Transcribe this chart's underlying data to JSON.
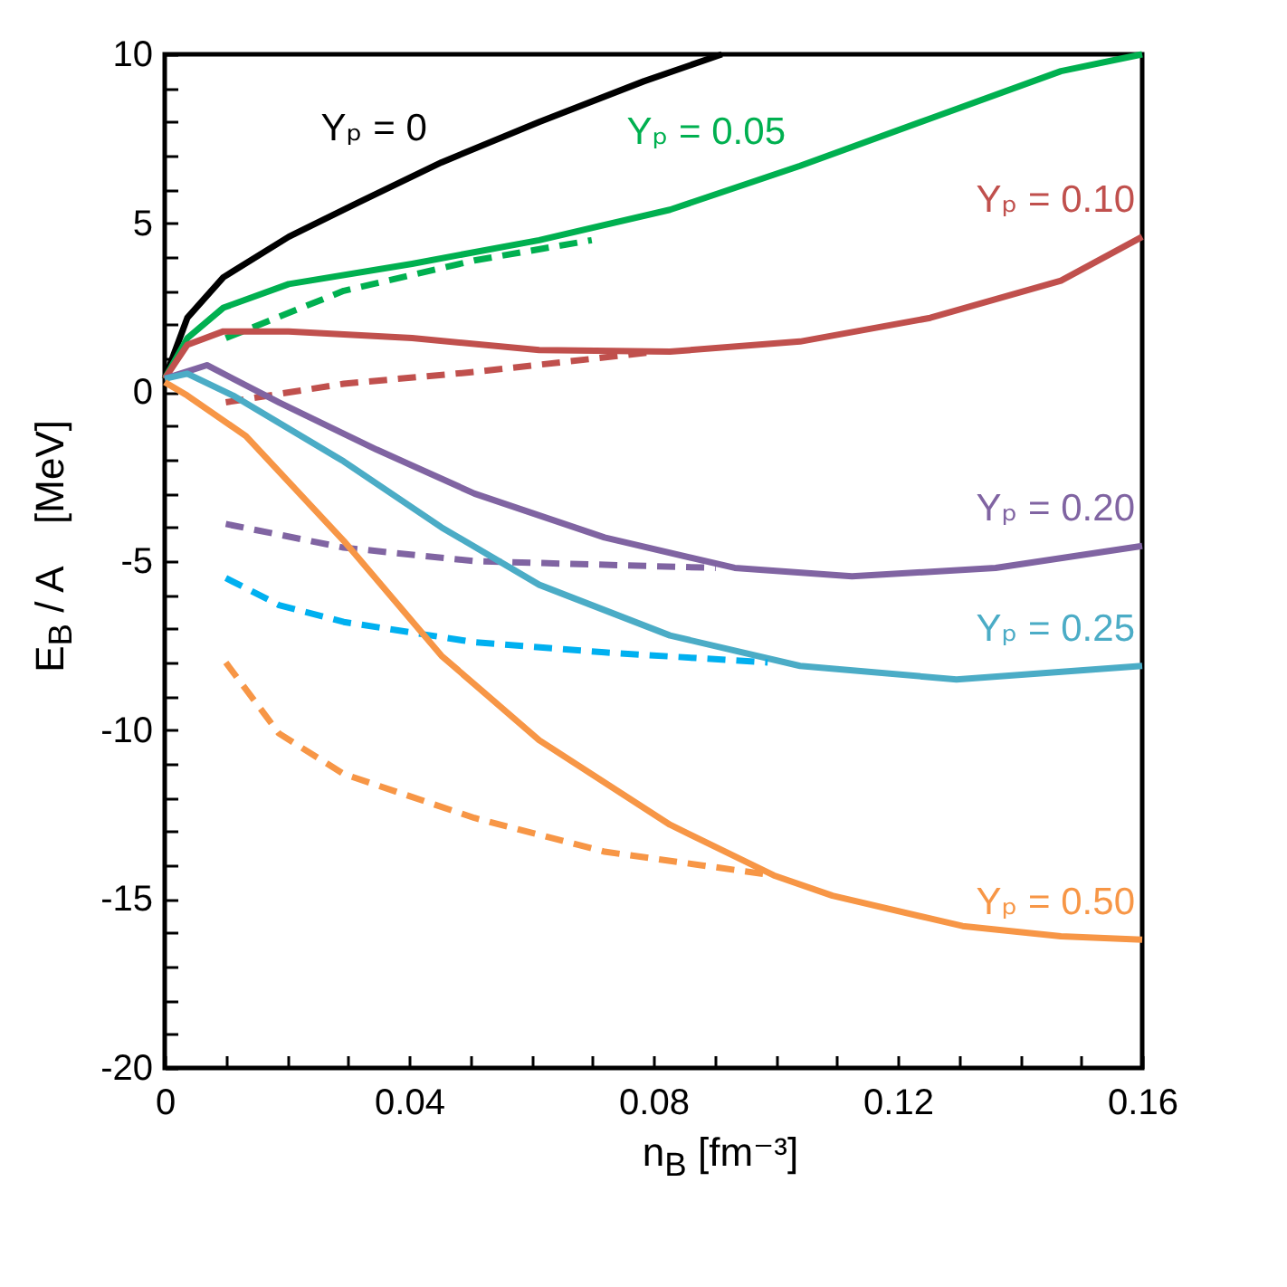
{
  "chart_data": {
    "type": "line",
    "xlabel": "n$_{B}$ [fm⁻³]",
    "ylabel": "E$_{B}$ / A    [MeV]",
    "xlim": [
      0,
      0.16
    ],
    "ylim": [
      -20,
      10
    ],
    "xticks": [
      0,
      {
        "value": 0.01,
        "label": null
      },
      {
        "value": 0.02,
        "label": null
      },
      {
        "value": 0.03,
        "label": null
      },
      0.04,
      {
        "value": 0.05,
        "label": null
      },
      {
        "value": 0.06,
        "label": null
      },
      {
        "value": 0.07,
        "label": null
      },
      0.08,
      {
        "value": 0.09,
        "label": null
      },
      {
        "value": 0.1,
        "label": null
      },
      {
        "value": 0.11,
        "label": null
      },
      0.12,
      {
        "value": 0.13,
        "label": null
      },
      {
        "value": 0.14,
        "label": null
      },
      {
        "value": 0.15,
        "label": null
      },
      0.16
    ],
    "yticks": [
      -20,
      {
        "value": -19,
        "label": null
      },
      {
        "value": -18,
        "label": null
      },
      {
        "value": -17,
        "label": null
      },
      {
        "value": -16,
        "label": null
      },
      -15,
      {
        "value": -14,
        "label": null
      },
      {
        "value": -13,
        "label": null
      },
      {
        "value": -12,
        "label": null
      },
      {
        "value": -11,
        "label": null
      },
      -10,
      {
        "value": -9,
        "label": null
      },
      {
        "value": -8,
        "label": null
      },
      {
        "value": -7,
        "label": null
      },
      {
        "value": -6,
        "label": null
      },
      -5,
      {
        "value": -4,
        "label": null
      },
      {
        "value": -3,
        "label": null
      },
      {
        "value": -2,
        "label": null
      },
      {
        "value": -1,
        "label": null
      },
      0,
      {
        "value": 1,
        "label": null
      },
      {
        "value": 2,
        "label": null
      },
      {
        "value": 3,
        "label": null
      },
      {
        "value": 4,
        "label": null
      },
      5,
      {
        "value": 6,
        "label": null
      },
      {
        "value": 7,
        "label": null
      },
      {
        "value": 8,
        "label": null
      },
      {
        "value": 9,
        "label": null
      },
      10
    ],
    "line_style": "solid",
    "series": [
      {
        "name": "Yₚ = 0",
        "color": "#000000",
        "x": [
          0,
          0.0037,
          0.0096,
          0.0203,
          0.0315,
          0.0453,
          0.0613,
          0.0784,
          0.0912
        ],
        "values": [
          0.4,
          2.2,
          3.4,
          4.6,
          5.6,
          6.8,
          8.0,
          9.2,
          10
        ]
      },
      {
        "name": "Yₚ = 0.05",
        "color": "#00b050",
        "x": [
          0,
          0.0037,
          0.0096,
          0.0203,
          0.0405,
          0.0613,
          0.0827,
          0.104,
          0.1253,
          0.1467,
          0.16
        ],
        "values": [
          0.4,
          1.6,
          2.5,
          3.2,
          3.8,
          4.5,
          5.4,
          6.7,
          8.1,
          9.5,
          10
        ]
      },
      {
        "color": "#00b050",
        "line_style": "dashed",
        "x": [
          0.01,
          0.0293,
          0.0507,
          0.0699
        ],
        "values": [
          1.6,
          3.0,
          3.9,
          4.5
        ]
      },
      {
        "name": "Yₚ = 0.10",
        "color": "#c0504d",
        "x": [
          0,
          0.0037,
          0.0096,
          0.0203,
          0.0405,
          0.0613,
          0.0827,
          0.104,
          0.1253,
          0.1467,
          0.16
        ],
        "values": [
          0.4,
          1.4,
          1.8,
          1.8,
          1.6,
          1.25,
          1.2,
          1.5,
          2.2,
          3.3,
          4.6
        ]
      },
      {
        "color": "#c0504d",
        "line_style": "dashed",
        "x": [
          0.01,
          0.0293,
          0.0507,
          0.0805
        ],
        "values": [
          -0.3,
          0.25,
          0.6,
          1.2
        ]
      },
      {
        "name": "Yₚ = 0.20",
        "color": "#8064a2",
        "x": [
          0,
          0.0069,
          0.0187,
          0.0347,
          0.0507,
          0.072,
          0.0933,
          0.1125,
          0.136,
          0.16
        ],
        "values": [
          0.4,
          0.8,
          -0.3,
          -1.7,
          -3.0,
          -4.3,
          -5.2,
          -5.45,
          -5.2,
          -4.55
        ]
      },
      {
        "color": "#8064a2",
        "line_style": "dashed",
        "x": [
          0.01,
          0.0293,
          0.0507,
          0.0902
        ],
        "values": [
          -3.9,
          -4.6,
          -5.0,
          -5.2
        ]
      },
      {
        "name": "Yₚ = 0.25",
        "color": "#4bacc6",
        "x": [
          0,
          0.0037,
          0.0112,
          0.0293,
          0.0453,
          0.0613,
          0.0827,
          0.104,
          0.1296,
          0.16
        ],
        "values": [
          0.4,
          0.55,
          -0.1,
          -2.05,
          -4.0,
          -5.7,
          -7.2,
          -8.1,
          -8.5,
          -8.1
        ]
      },
      {
        "color": "#00b0f0",
        "line_style": "dashed",
        "x": [
          0.01,
          0.0187,
          0.0293,
          0.0507,
          0.072,
          0.0987
        ],
        "values": [
          -5.5,
          -6.3,
          -6.8,
          -7.4,
          -7.7,
          -8.0
        ]
      },
      {
        "name": "Yₚ = 0.50",
        "color": "#f79646",
        "x": [
          0,
          0.0037,
          0.0133,
          0.0293,
          0.0453,
          0.0613,
          0.0827,
          0.0997,
          0.1093,
          0.1306,
          0.1467,
          0.16
        ],
        "values": [
          0.3,
          -0.1,
          -1.3,
          -4.4,
          -7.8,
          -10.3,
          -12.8,
          -14.3,
          -14.9,
          -15.8,
          -16.1,
          -16.2
        ]
      },
      {
        "color": "#f79646",
        "line_style": "dashed",
        "x": [
          0.01,
          0.0187,
          0.0293,
          0.0507,
          0.072,
          0.0997
        ],
        "values": [
          -8.0,
          -10.1,
          -11.3,
          -12.6,
          -13.6,
          -14.3
        ]
      }
    ]
  }
}
